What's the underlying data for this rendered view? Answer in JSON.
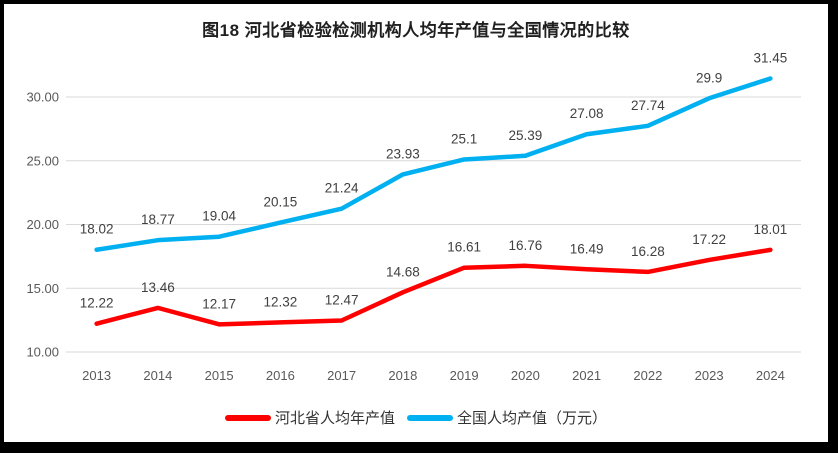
{
  "title": "图18 河北省检验检测机构人均年产值与全国情况的比较",
  "chart_data": {
    "type": "line",
    "categories": [
      "2013",
      "2014",
      "2015",
      "2016",
      "2017",
      "2018",
      "2019",
      "2020",
      "2021",
      "2022",
      "2023",
      "2024"
    ],
    "series": [
      {
        "name": "河北省人均年产值",
        "color": "#FF0000",
        "values": [
          12.22,
          13.46,
          12.17,
          12.32,
          12.47,
          14.68,
          16.61,
          16.76,
          16.49,
          16.28,
          17.22,
          18.01
        ]
      },
      {
        "name": "全国人均产值（万元）",
        "color": "#00B0F0",
        "values": [
          18.02,
          18.77,
          19.04,
          20.15,
          21.24,
          23.93,
          25.1,
          25.39,
          27.08,
          27.74,
          29.9,
          31.45
        ]
      }
    ],
    "ylim": [
      10,
      30
    ],
    "yticks": [
      10,
      15,
      20,
      25,
      30
    ],
    "ytick_labels": [
      "10.00",
      "15.00",
      "20.00",
      "25.00",
      "30.00"
    ],
    "grid": true,
    "data_labels": true,
    "legend_position": "bottom",
    "xlabel": "",
    "ylabel": "",
    "gridline_color": "#D9D9D9",
    "axis_label_color": "#595959",
    "data_label_color": "#404040",
    "frame_border_color": "#000000",
    "background_color": "#FFFFFF"
  }
}
